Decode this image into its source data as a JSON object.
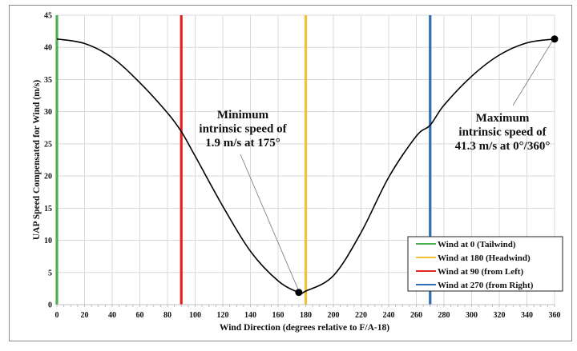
{
  "chart_data": {
    "type": "line",
    "xlabel": "Wind Direction (degrees relative to F/A-18)",
    "ylabel": "UAP Speed  Compensated for Wind (m/s)",
    "xlim": [
      0,
      360
    ],
    "ylim": [
      0,
      45
    ],
    "xticks": [
      0,
      20,
      40,
      60,
      80,
      100,
      120,
      140,
      160,
      180,
      200,
      220,
      240,
      260,
      280,
      300,
      320,
      340,
      360
    ],
    "yticks": [
      0,
      5,
      10,
      15,
      20,
      25,
      30,
      35,
      40,
      45
    ],
    "grid": true,
    "legend_position": "bottom-right",
    "series": [
      {
        "name": "UAP speed",
        "color": "#000000",
        "x": [
          0,
          20,
          40,
          60,
          80,
          90,
          100,
          120,
          140,
          160,
          175,
          180,
          200,
          220,
          240,
          260,
          270,
          280,
          300,
          320,
          340,
          360
        ],
        "y": [
          41.3,
          40.6,
          38.4,
          34.5,
          29.8,
          26.9,
          23.1,
          15.3,
          8.3,
          3.7,
          1.9,
          2.1,
          4.5,
          11.2,
          19.8,
          26.2,
          27.9,
          31.0,
          35.5,
          38.8,
          40.7,
          41.3
        ]
      }
    ],
    "reference_lines": [
      {
        "label": "Wind at 0 (Tailwind)",
        "x": 0,
        "color": "#4caf50"
      },
      {
        "label": "Wind at 180 (Headwind)",
        "x": 180,
        "color": "#f2c233"
      },
      {
        "label": "Wind at 90 (from Left)",
        "x": 90,
        "color": "#e02424"
      },
      {
        "label": "Wind at 270 (from Right)",
        "x": 270,
        "color": "#2f6db5"
      }
    ],
    "markers": [
      {
        "x": 175,
        "y": 1.9
      },
      {
        "x": 360,
        "y": 41.3
      }
    ],
    "annotations": [
      {
        "lines": [
          "Minimum",
          "intrinsic speed of",
          "1.9 m/s at 175°"
        ],
        "target_x": 175,
        "target_y": 1.9
      },
      {
        "lines": [
          "Maximum",
          "intrinsic speed of",
          "41.3 m/s at 0°/360°"
        ],
        "target_x": 360,
        "target_y": 41.3
      }
    ]
  }
}
